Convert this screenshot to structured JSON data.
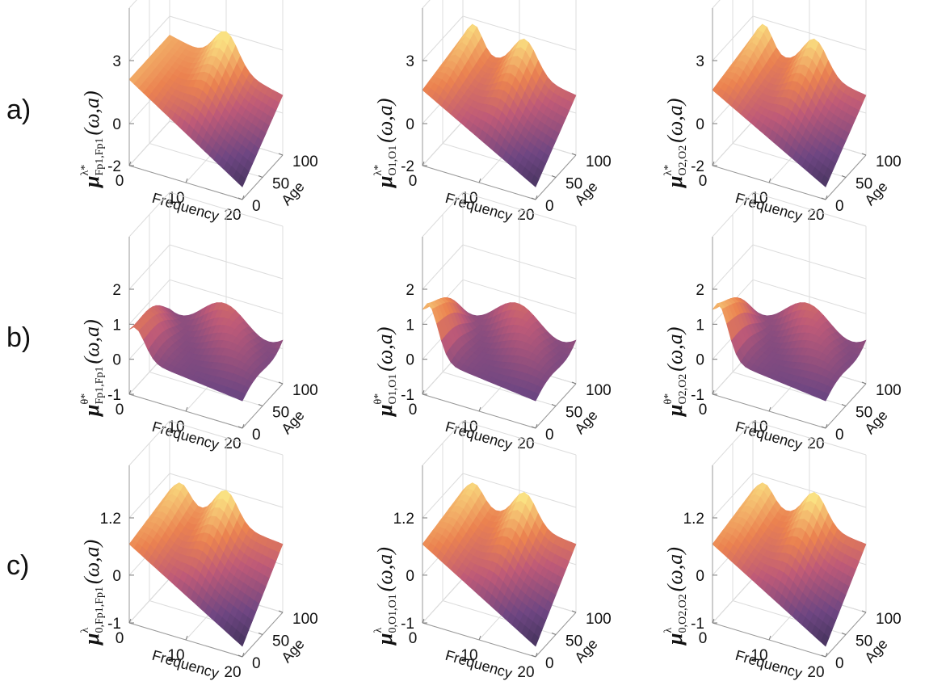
{
  "row_labels": [
    "a)",
    "b)",
    "c)"
  ],
  "chart_data": [
    {
      "type": "surface",
      "xlabel": "Frequency",
      "ylabel": "Age",
      "zlabel": {
        "symbol": "μ",
        "sup": "λ*",
        "sub": "Fp1,Fp1",
        "args": "(ω,a)"
      },
      "xlim": [
        0,
        20
      ],
      "xticks": [
        0,
        10,
        20
      ],
      "ylim": [
        0,
        100
      ],
      "yticks": [
        0,
        50,
        100
      ],
      "zlim": [
        -2,
        3
      ],
      "zticks": [
        -2,
        0,
        3
      ]
    },
    {
      "type": "surface",
      "xlabel": "Frequency",
      "ylabel": "Age",
      "zlabel": {
        "symbol": "μ",
        "sup": "λ*",
        "sub": "O1,O1",
        "args": "(ω,a)"
      },
      "xlim": [
        0,
        20
      ],
      "xticks": [
        0,
        10,
        20
      ],
      "ylim": [
        0,
        100
      ],
      "yticks": [
        0,
        50,
        100
      ],
      "zlim": [
        -2,
        3
      ],
      "zticks": [
        -2,
        0,
        3
      ]
    },
    {
      "type": "surface",
      "xlabel": "Frequency",
      "ylabel": "Age",
      "zlabel": {
        "symbol": "μ",
        "sup": "λ*",
        "sub": "O2,O2",
        "args": "(ω,a)"
      },
      "xlim": [
        0,
        20
      ],
      "xticks": [
        0,
        10,
        20
      ],
      "ylim": [
        0,
        100
      ],
      "yticks": [
        0,
        50,
        100
      ],
      "zlim": [
        -2,
        3
      ],
      "zticks": [
        -2,
        0,
        3
      ]
    },
    {
      "type": "surface",
      "xlabel": "Frequency",
      "ylabel": "Age",
      "zlabel": {
        "symbol": "μ",
        "sup": "θ*",
        "sub": "Fp1,Fp1",
        "args": "(ω,a)"
      },
      "xlim": [
        0,
        20
      ],
      "xticks": [
        0,
        10,
        20
      ],
      "ylim": [
        0,
        100
      ],
      "yticks": [
        0,
        50,
        100
      ],
      "zlim": [
        -1,
        2
      ],
      "zticks": [
        -1,
        0,
        1,
        2
      ]
    },
    {
      "type": "surface",
      "xlabel": "Frequency",
      "ylabel": "Age",
      "zlabel": {
        "symbol": "μ",
        "sup": "θ*",
        "sub": "O1,O1",
        "args": "(ω,a)"
      },
      "xlim": [
        0,
        20
      ],
      "xticks": [
        0,
        10,
        20
      ],
      "ylim": [
        0,
        100
      ],
      "yticks": [
        0,
        50,
        100
      ],
      "zlim": [
        -1,
        2
      ],
      "zticks": [
        -1,
        0,
        1,
        2
      ]
    },
    {
      "type": "surface",
      "xlabel": "Frequency",
      "ylabel": "Age",
      "zlabel": {
        "symbol": "μ",
        "sup": "θ*",
        "sub": "O2,O2",
        "args": "(ω,a)"
      },
      "xlim": [
        0,
        20
      ],
      "xticks": [
        0,
        10,
        20
      ],
      "ylim": [
        0,
        100
      ],
      "yticks": [
        0,
        50,
        100
      ],
      "zlim": [
        -1,
        2
      ],
      "zticks": [
        -1,
        0,
        1,
        2
      ]
    },
    {
      "type": "surface",
      "xlabel": "Frequency",
      "ylabel": "Age",
      "zlabel": {
        "symbol": "μ",
        "sup": "λ",
        "sub": "0,Fp1,Fp1",
        "args": "(ω,a)"
      },
      "xlim": [
        0,
        20
      ],
      "xticks": [
        0,
        10,
        20
      ],
      "ylim": [
        0,
        100
      ],
      "yticks": [
        0,
        50,
        100
      ],
      "zlim": [
        -1,
        1.2
      ],
      "zticks": [
        -1,
        0,
        1.2
      ]
    },
    {
      "type": "surface",
      "xlabel": "Frequency",
      "ylabel": "Age",
      "zlabel": {
        "symbol": "μ",
        "sup": "λ",
        "sub": "0,O1,O1",
        "args": "(ω,a)"
      },
      "xlim": [
        0,
        20
      ],
      "xticks": [
        0,
        10,
        20
      ],
      "ylim": [
        0,
        100
      ],
      "yticks": [
        0,
        50,
        100
      ],
      "zlim": [
        -1,
        1.2
      ],
      "zticks": [
        -1,
        0,
        1.2
      ]
    },
    {
      "type": "surface",
      "xlabel": "Frequency",
      "ylabel": "Age",
      "zlabel": {
        "symbol": "μ",
        "sup": "λ",
        "sub": "0,O2,O2",
        "args": "(ω,a)"
      },
      "xlim": [
        0,
        20
      ],
      "xticks": [
        0,
        10,
        20
      ],
      "ylim": [
        0,
        100
      ],
      "yticks": [
        0,
        50,
        100
      ],
      "zlim": [
        -1,
        1.2
      ],
      "zticks": [
        -1,
        0,
        1.2
      ]
    }
  ]
}
